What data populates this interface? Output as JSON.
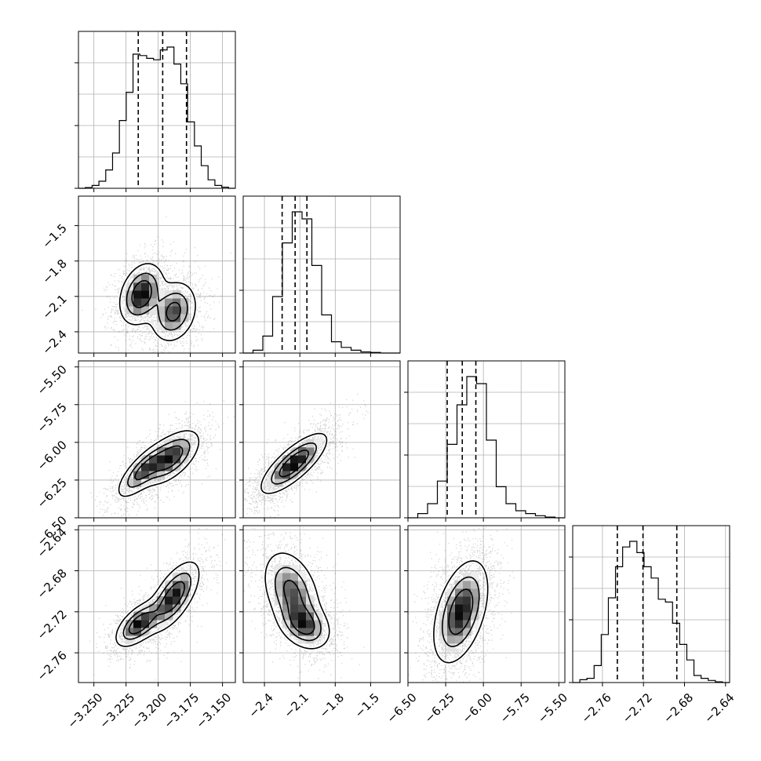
{
  "chart_data": {
    "type": "corner",
    "variables": [
      {
        "index": 0,
        "range": [
          -3.262,
          -3.14
        ],
        "ticks": [
          -3.25,
          -3.225,
          -3.2,
          -3.175,
          -3.15
        ],
        "tick_labels": [
          "−3.250",
          "−3.225",
          "−3.200",
          "−3.175",
          "−3.150"
        ],
        "quantile_lines": [
          -3.2155,
          -3.1965,
          -3.178
        ],
        "hist_edges": [
          -3.262,
          -3.14
        ],
        "hist_counts": [
          0.0,
          0.005,
          0.02,
          0.05,
          0.13,
          0.25,
          0.48,
          0.68,
          0.95,
          0.94,
          0.92,
          0.91,
          0.98,
          1.0,
          0.88,
          0.74,
          0.47,
          0.3,
          0.16,
          0.06,
          0.02,
          0.008,
          0.0
        ]
      },
      {
        "index": 1,
        "range": [
          -2.58,
          -1.25
        ],
        "ticks": [
          -2.4,
          -2.1,
          -1.8,
          -1.5
        ],
        "tick_labels": [
          "−2.4",
          "−2.1",
          "−1.8",
          "−1.5"
        ],
        "quantile_lines": [
          -2.25,
          -2.14,
          -2.04
        ],
        "hist_edges": [
          -2.58,
          -1.25
        ],
        "hist_counts": [
          0.0,
          0.02,
          0.12,
          0.4,
          0.78,
          1.0,
          0.95,
          0.62,
          0.27,
          0.08,
          0.04,
          0.02,
          0.008,
          0.004,
          0.0,
          0.0
        ]
      },
      {
        "index": 2,
        "range": [
          -6.5,
          -5.46
        ],
        "ticks": [
          -6.5,
          -6.25,
          -6.0,
          -5.75,
          -5.5
        ],
        "tick_labels": [
          "−6.50",
          "−6.25",
          "−6.00",
          "−5.75",
          "−5.50"
        ],
        "quantile_lines": [
          -6.24,
          -6.14,
          -6.05
        ],
        "hist_edges": [
          -6.5,
          -5.46
        ],
        "hist_counts": [
          0.0,
          0.03,
          0.1,
          0.26,
          0.52,
          0.8,
          1.0,
          0.95,
          0.55,
          0.22,
          0.1,
          0.05,
          0.03,
          0.015,
          0.005,
          0.0
        ]
      },
      {
        "index": 3,
        "range": [
          -2.789,
          -2.636
        ],
        "ticks": [
          -2.76,
          -2.72,
          -2.68,
          -2.64
        ],
        "tick_labels": [
          "−2.76",
          "−2.72",
          "−2.68",
          "−2.64"
        ],
        "quantile_lines": [
          -2.7455,
          -2.7205,
          -2.6875
        ],
        "hist_edges": [
          -2.789,
          -2.636
        ],
        "hist_counts": [
          0.0,
          0.02,
          0.03,
          0.12,
          0.34,
          0.6,
          0.82,
          0.96,
          1.0,
          0.92,
          0.82,
          0.74,
          0.59,
          0.57,
          0.42,
          0.27,
          0.16,
          0.05,
          0.03,
          0.015,
          0.005,
          0.0
        ]
      }
    ],
    "pairs": [
      {
        "row": 1,
        "col": 0,
        "modes": [
          {
            "x": -3.213,
            "y": -2.08,
            "sx": 0.0085,
            "sy": 0.13,
            "rho": 0.3,
            "w": 0.55
          },
          {
            "x": -3.188,
            "y": -2.23,
            "sx": 0.009,
            "sy": 0.13,
            "rho": 0.2,
            "w": 0.45
          }
        ]
      },
      {
        "row": 2,
        "col": 0,
        "modes": [
          {
            "x": -3.212,
            "y": -6.19,
            "sx": 0.01,
            "sy": 0.09,
            "rho": 0.75,
            "w": 0.45
          },
          {
            "x": -3.19,
            "y": -6.1,
            "sx": 0.011,
            "sy": 0.09,
            "rho": 0.6,
            "w": 0.55
          }
        ]
      },
      {
        "row": 2,
        "col": 1,
        "modes": [
          {
            "x": -2.15,
            "y": -6.14,
            "sx": 0.14,
            "sy": 0.1,
            "rho": 0.78,
            "w": 1.0
          }
        ]
      },
      {
        "row": 3,
        "col": 0,
        "modes": [
          {
            "x": -3.215,
            "y": -2.732,
            "sx": 0.009,
            "sy": 0.011,
            "rho": 0.6,
            "w": 0.5
          },
          {
            "x": -3.188,
            "y": -2.705,
            "sx": 0.01,
            "sy": 0.017,
            "rho": 0.65,
            "w": 0.5
          }
        ]
      },
      {
        "row": 3,
        "col": 1,
        "modes": [
          {
            "x": -2.17,
            "y": -2.7,
            "sx": 0.12,
            "sy": 0.02,
            "rho": -0.35,
            "w": 0.5
          },
          {
            "x": -2.06,
            "y": -2.733,
            "sx": 0.11,
            "sy": 0.012,
            "rho": -0.3,
            "w": 0.5
          }
        ]
      },
      {
        "row": 3,
        "col": 2,
        "modes": [
          {
            "x": -6.15,
            "y": -2.72,
            "sx": 0.09,
            "sy": 0.025,
            "rho": 0.45,
            "w": 1.0
          }
        ]
      }
    ],
    "grid": true,
    "sample_color": "#000000"
  }
}
